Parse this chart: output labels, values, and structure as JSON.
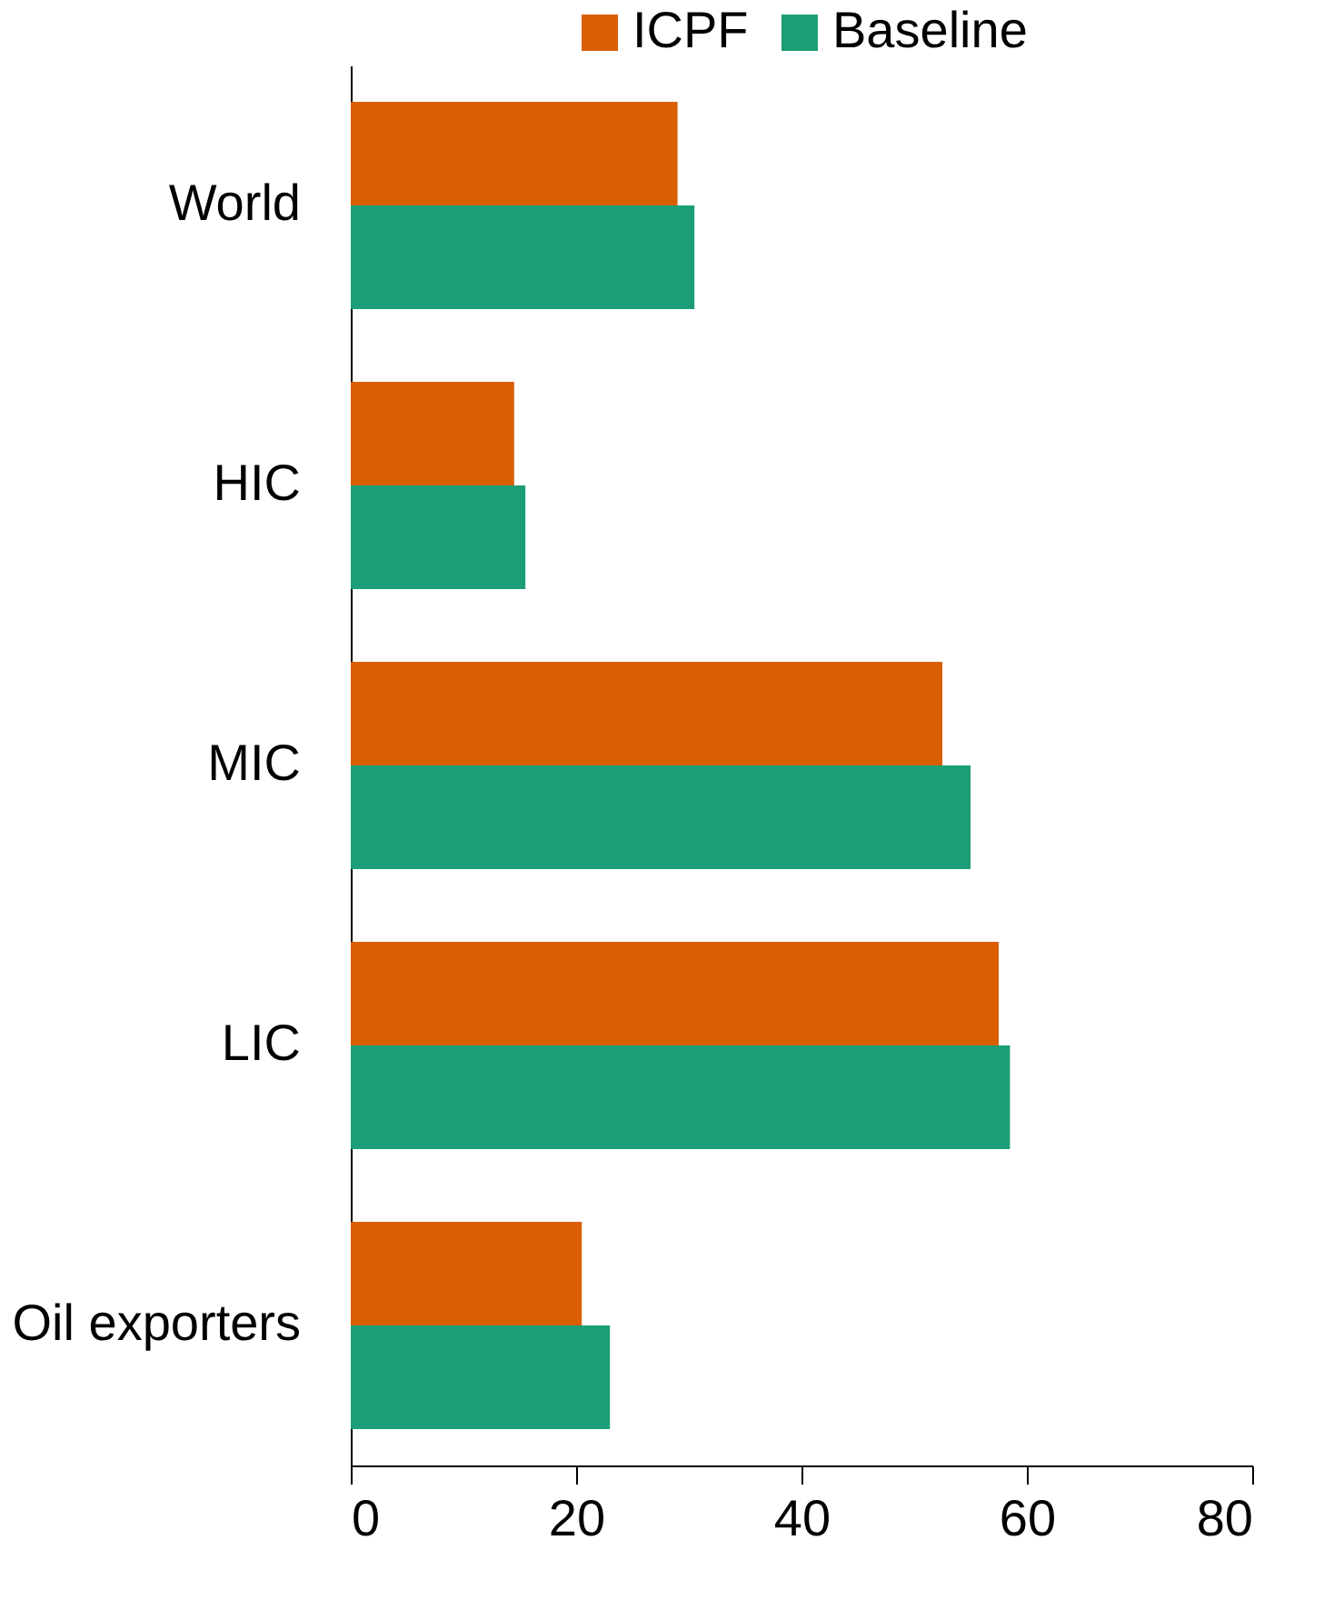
{
  "chart_data": {
    "type": "bar",
    "orientation": "horizontal",
    "categories": [
      "World",
      "HIC",
      "MIC",
      "LIC",
      "Oil exporters"
    ],
    "series": [
      {
        "name": "ICPF",
        "color": "#d95f02",
        "values": [
          29,
          14.5,
          52.5,
          57.5,
          20.5
        ]
      },
      {
        "name": "Baseline",
        "color": "#1b9e77",
        "values": [
          30.5,
          15.5,
          55,
          58.5,
          23
        ]
      }
    ],
    "xlim": [
      0,
      80
    ],
    "xticks": [
      0,
      20,
      40,
      60,
      80
    ],
    "legend": "top"
  }
}
